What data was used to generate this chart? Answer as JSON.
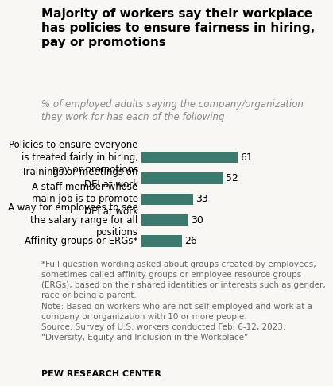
{
  "title": "Majority of workers say their workplace\nhas policies to ensure fairness in hiring,\npay or promotions",
  "subtitle": "% of employed adults saying the company/organization\nthey work for has each of the following",
  "categories": [
    "Policies to ensure everyone\nis treated fairly in hiring,\npay or promotions",
    "Trainings or meetings on\nDEI at work",
    "A staff member whose\nmain job is to promote\nDEI at work",
    "A way for employees to see\nthe salary range for all\npositions",
    "Affinity groups or ERGs*"
  ],
  "values": [
    61,
    52,
    33,
    30,
    26
  ],
  "bar_color": "#3d7a6e",
  "value_color": "#000000",
  "background_color": "#f9f7f4",
  "title_color": "#000000",
  "subtitle_color": "#888888",
  "footnote_color": "#666666",
  "footer_label": "PEW RESEARCH CENTER",
  "footnote_line1": "*Full question wording asked about groups created by employees,",
  "footnote_line2": "sometimes called affinity groups or employee resource groups",
  "footnote_line3": "(ERGs), based on their shared identities or interests such as gender,",
  "footnote_line4": "race or being a parent.",
  "footnote_line5": "Note: Based on workers who are not self-employed and work at a",
  "footnote_line6": "company or organization with 10 or more people.",
  "footnote_line7": "Source: Survey of U.S. workers conducted Feb. 6-12, 2023.",
  "footnote_line8": "“Diversity, Equity and Inclusion in the Workplace”",
  "xlim": [
    0,
    75
  ],
  "title_fontsize": 11.0,
  "subtitle_fontsize": 8.5,
  "label_fontsize": 8.5,
  "value_fontsize": 9.0,
  "footnote_fontsize": 7.5,
  "footer_fontsize": 8.0
}
